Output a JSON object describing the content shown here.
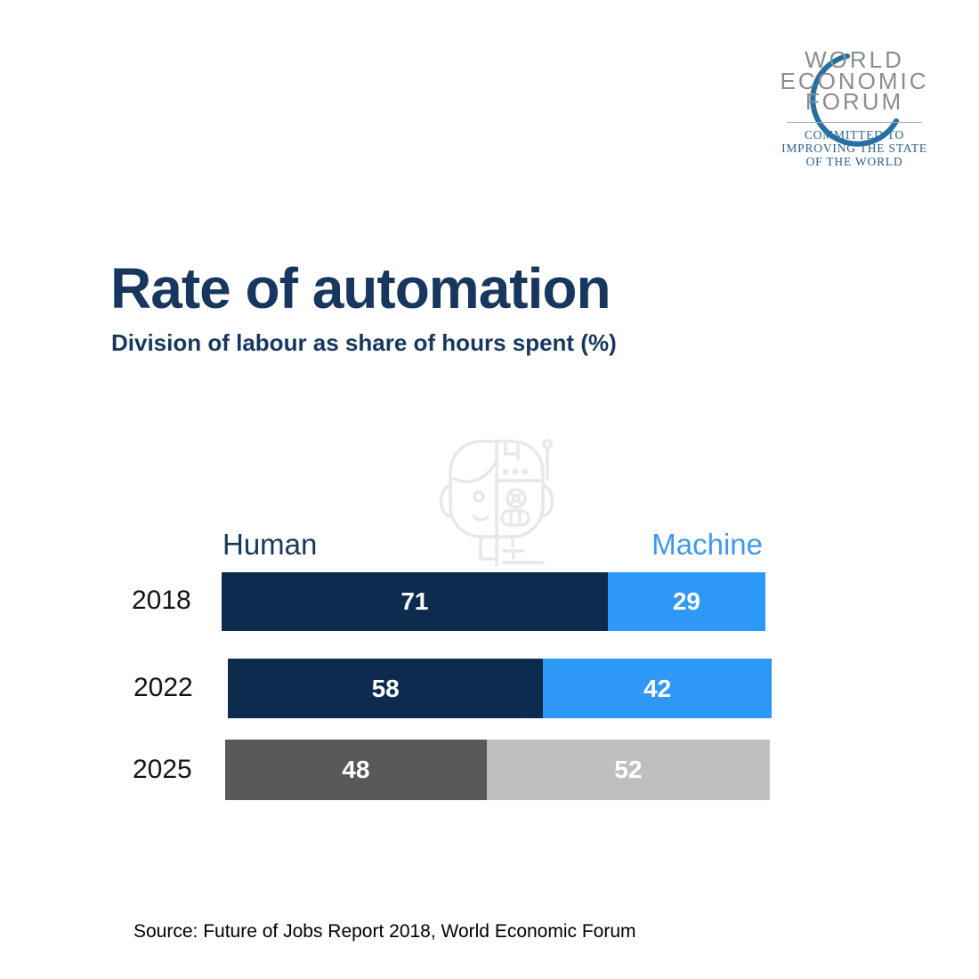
{
  "logo": {
    "lines": [
      "WORLD",
      "ECONOMIC",
      "FORUM"
    ],
    "tagline_lines": [
      "COMMITTED TO",
      "IMPROVING THE STATE",
      "OF THE WORLD"
    ],
    "swoosh_color": "#2470a3",
    "text_color": "#8c8c8c",
    "tagline_color": "#2b5f8e"
  },
  "header": {
    "title": "Rate of automation",
    "subtitle": "Division of labour as share of hours spent (%)"
  },
  "colors": {
    "title_navy": "#17375e",
    "navy_bar": "#0c2b4f",
    "blue_bar": "#2e98f6",
    "machine_blue": "#3e99ee",
    "dark_gray_bar": "#595959",
    "light_gray_bar": "#bfbfbf",
    "logo_gray": "#8c8c8c",
    "tagline_blue": "#2b5f8e"
  },
  "icons": {
    "robot": "robot-head-half-human-half-machine-icon",
    "swoosh": "wef-crescent-swoosh-icon"
  },
  "chart_data": {
    "type": "bar",
    "orientation": "horizontal-stacked",
    "title": "Rate of automation",
    "subtitle": "Division of labour as share of hours spent (%)",
    "unit": "%",
    "xlim": [
      0,
      100
    ],
    "grid": false,
    "legend_position": "above-bars",
    "categories": [
      "2018",
      "2022",
      "2025"
    ],
    "series": [
      {
        "name": "Human",
        "values": [
          71,
          58,
          48
        ]
      },
      {
        "name": "Machine",
        "values": [
          29,
          42,
          52
        ]
      }
    ],
    "row_colors": [
      [
        "#0c2b4f",
        "#2e98f6"
      ],
      [
        "#0c2b4f",
        "#2e98f6"
      ],
      [
        "#595959",
        "#bfbfbf"
      ]
    ],
    "value_labels": "white, centered in each segment"
  },
  "source": "Source: Future of Jobs Report 2018, World Economic Forum"
}
